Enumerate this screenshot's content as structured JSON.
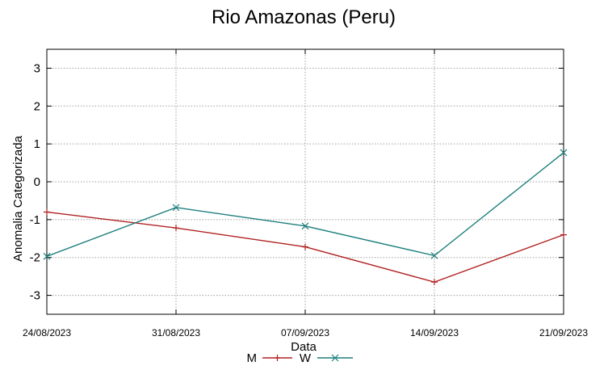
{
  "chart_data": {
    "type": "line",
    "title": "Rio Amazonas (Peru)",
    "xlabel": "Data",
    "ylabel": "Anomalia Categorizada",
    "categories": [
      "24/08/2023",
      "31/08/2023",
      "07/09/2023",
      "14/09/2023",
      "21/09/2023"
    ],
    "ylim": [
      -3.5,
      3.5
    ],
    "yticks": [
      -3,
      -2,
      -1,
      0,
      1,
      2,
      3
    ],
    "grid": true,
    "legend_position": "bottom-center",
    "series": [
      {
        "name": "M",
        "color": "#b22222",
        "marker": "plus",
        "values": [
          -0.8,
          -1.22,
          -1.72,
          -2.65,
          -1.4
        ]
      },
      {
        "name": "W",
        "color": "#1f7f7f",
        "marker": "cross",
        "values": [
          -1.97,
          -0.68,
          -1.17,
          -1.95,
          0.77
        ]
      }
    ]
  }
}
